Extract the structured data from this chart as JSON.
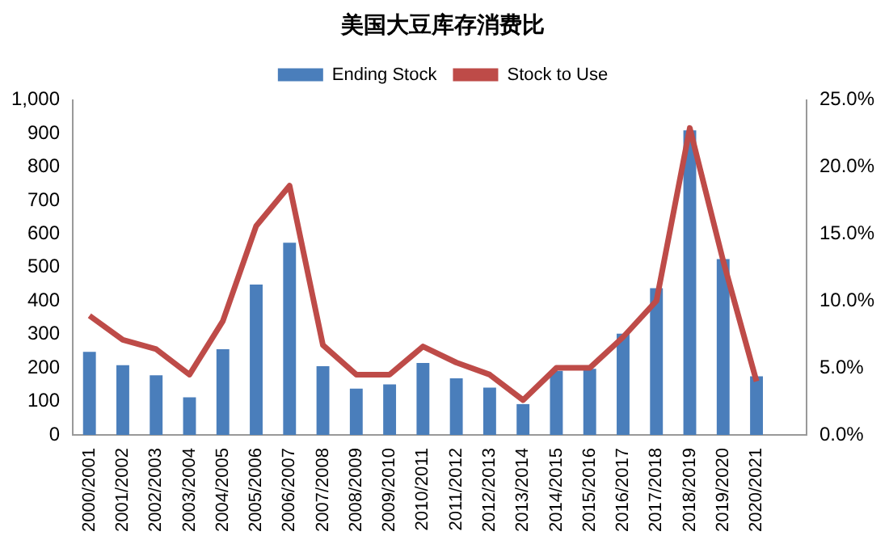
{
  "chart_data": {
    "type": "bar",
    "title": "美国大豆库存消费比",
    "categories": [
      "2000/2001",
      "2001/2002",
      "2002/2003",
      "2003/2004",
      "2004/2005",
      "2005/2006",
      "2006/2007",
      "2007/2008",
      "2008/2009",
      "2009/2010",
      "2010/2011",
      "2011/2012",
      "2012/2013",
      "2013/2014",
      "2014/2015",
      "2015/2016",
      "2016/2017",
      "2017/2018",
      "2018/2019",
      "2019/2020",
      "2020/2021",
      null
    ],
    "series": [
      {
        "name": "Ending Stock",
        "color": "#4a7ebb",
        "values": [
          248,
          208,
          178,
          112,
          256,
          449,
          574,
          205,
          138,
          151,
          215,
          169,
          141,
          92,
          191,
          197,
          302,
          438,
          909,
          525,
          175,
          null
        ]
      },
      {
        "name": "Stock to Use",
        "type": "line",
        "axis": "y2",
        "color": "#be4b48",
        "values": [
          8.9,
          7.1,
          6.4,
          4.5,
          8.5,
          15.6,
          18.6,
          6.7,
          4.5,
          4.5,
          6.6,
          5.4,
          4.5,
          2.6,
          5.0,
          5.0,
          7.3,
          10.0,
          22.9,
          13.0,
          4.0,
          null
        ]
      }
    ],
    "ylim": [
      0,
      1000
    ],
    "yticks": [
      0,
      {
        "value": 100,
        "label": "100"
      },
      200,
      300,
      400,
      500,
      600,
      700,
      800,
      900,
      {
        "value": 1000,
        "label": "1,000"
      }
    ],
    "y2lim": [
      0,
      25
    ],
    "y2ticks": [
      {
        "value": 0,
        "label": "0.0%"
      },
      {
        "value": 5,
        "label": "5.0%"
      },
      {
        "value": 10,
        "label": "10.0%"
      },
      {
        "value": 15,
        "label": "15.0%"
      },
      {
        "value": 20,
        "label": "20.0%"
      },
      {
        "value": 25,
        "label": "25.0%"
      }
    ],
    "legend": "top",
    "grid": false,
    "marker": "none"
  }
}
